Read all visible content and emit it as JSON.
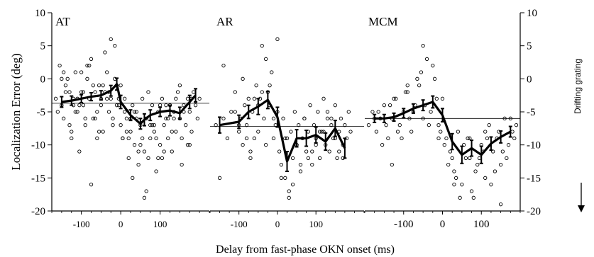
{
  "figure": {
    "ylabel": "Localization Error (deg)",
    "xlabel": "Delay from fast-phase OKN onset (ms)",
    "side_label": "Drifting grating",
    "side_arrow": "down-arrow",
    "colors": {
      "ink": "#000000",
      "background": "#ffffff"
    }
  },
  "chart_data": [
    {
      "type": "scatter",
      "panel": "AT",
      "xlim": [
        -175,
        225
      ],
      "ylim": [
        -20,
        10
      ],
      "x_ticks": [
        -100,
        0,
        100
      ],
      "x_tick_labels": [
        "-100",
        "0",
        "100"
      ],
      "y_ticks": [
        -20,
        -15,
        -10,
        -5,
        0,
        5,
        10
      ],
      "y_tick_labels": [
        "-20",
        "-15",
        "-10",
        "-5",
        "0",
        "5",
        "10"
      ],
      "y_axis_side": "left",
      "mean_line": -3.7,
      "series": [
        {
          "x": [
            -150,
            -125,
            -100,
            -75,
            -50,
            -25,
            -10,
            0,
            25,
            50,
            60,
            75,
            100,
            125,
            150,
            175,
            190
          ],
          "y": [
            -3.5,
            -3.3,
            -3.0,
            -2.7,
            -2.5,
            -1.8,
            -0.8,
            -3.5,
            -5.5,
            -6.8,
            -6.2,
            -5.5,
            -5.0,
            -4.8,
            -5.2,
            -3.5,
            -2.5
          ],
          "err": [
            0.8,
            0.7,
            0.6,
            0.6,
            0.7,
            0.8,
            0.9,
            1.0,
            0.8,
            0.8,
            0.9,
            0.8,
            0.7,
            0.8,
            0.9,
            1.0,
            1.0
          ]
        }
      ],
      "raw_points": {
        "x": [
          -165,
          -160,
          -155,
          -150,
          -145,
          -140,
          -135,
          -130,
          -125,
          -120,
          -115,
          -110,
          -105,
          -100,
          -95,
          -90,
          -85,
          -80,
          -75,
          -70,
          -65,
          -60,
          -55,
          -50,
          -45,
          -40,
          -35,
          -30,
          -25,
          -20,
          -15,
          -10,
          -5,
          0,
          5,
          10,
          15,
          20,
          25,
          30,
          35,
          40,
          45,
          50,
          55,
          60,
          65,
          70,
          75,
          80,
          85,
          90,
          95,
          100,
          105,
          110,
          115,
          120,
          125,
          130,
          135,
          140,
          145,
          150,
          155,
          160,
          165,
          170,
          175,
          180,
          185,
          190,
          195,
          200,
          -150,
          -140,
          -130,
          -120,
          -110,
          -100,
          -90,
          -80,
          -70,
          -60,
          -50,
          -40,
          -30,
          -20,
          -10,
          0,
          10,
          20,
          30,
          40,
          50,
          60,
          70,
          80,
          90,
          100,
          110,
          120,
          130,
          140,
          150,
          160,
          170,
          180,
          -145,
          -125,
          -105,
          -85,
          -65,
          -45,
          -25,
          -5,
          15,
          35,
          55,
          75,
          95,
          115,
          135,
          155,
          175,
          -115,
          -95,
          -75,
          -55,
          -35,
          -15,
          5,
          25,
          45,
          65,
          85,
          105,
          125
        ],
        "y": [
          -3,
          -5,
          2,
          -4,
          -6,
          -1,
          0,
          -2,
          -8,
          -3,
          1,
          -5,
          -11,
          -2,
          -4,
          -7,
          0,
          -3,
          3,
          -6,
          -2,
          -9,
          -1,
          -4,
          -8,
          -2,
          1,
          -5,
          -3,
          -6,
          5,
          -1,
          -4,
          -7,
          -9,
          -3,
          -6,
          -12,
          -8,
          -4,
          -10,
          -5,
          -13,
          -7,
          -3,
          -11,
          -6,
          -2,
          -9,
          -4,
          -8,
          -14,
          -5,
          -10,
          -3,
          -7,
          -6,
          -9,
          -4,
          -11,
          -5,
          -8,
          -2,
          -6,
          -9,
          -4,
          -7,
          -3,
          -5,
          -8,
          -2,
          -4,
          -6,
          -3,
          0,
          -2,
          -7,
          -4,
          -3,
          1,
          -6,
          2,
          -1,
          -5,
          -3,
          4,
          -2,
          -7,
          -4,
          -1,
          -5,
          -9,
          -15,
          -6,
          -10,
          -18,
          -12,
          -7,
          -9,
          -4,
          -11,
          -6,
          -8,
          -3,
          -1,
          -5,
          -10,
          -3,
          1,
          -9,
          -4,
          2,
          -6,
          -1,
          6,
          -3,
          -8,
          -5,
          -9,
          -7,
          -12,
          -4,
          -6,
          -13,
          -10,
          -5,
          -2,
          -16,
          -8,
          -3,
          0,
          -9,
          -6,
          -11,
          -17,
          -7,
          -12,
          -4
        ]
      }
    },
    {
      "type": "scatter",
      "panel": "AR",
      "xlim": [
        -175,
        225
      ],
      "ylim": [
        -20,
        10
      ],
      "x_ticks": [
        -100,
        0,
        100
      ],
      "x_tick_labels": [
        "-100",
        "0",
        "100"
      ],
      "mean_line": -7.2,
      "series": [
        {
          "x": [
            -150,
            -100,
            -75,
            -50,
            -25,
            0,
            25,
            50,
            75,
            100,
            125,
            150,
            175
          ],
          "y": [
            -7.0,
            -6.5,
            -5.0,
            -4.2,
            -3.2,
            -5.8,
            -12.5,
            -9.0,
            -9.0,
            -8.5,
            -9.5,
            -7.5,
            -10.5
          ],
          "err": [
            1.2,
            1.0,
            1.0,
            1.2,
            1.3,
            1.5,
            1.5,
            1.3,
            1.2,
            1.2,
            1.3,
            1.2,
            1.5
          ]
        }
      ],
      "raw_points": {
        "x": [
          -160,
          -150,
          -140,
          -130,
          -120,
          -110,
          -100,
          -95,
          -90,
          -85,
          -80,
          -75,
          -70,
          -65,
          -60,
          -55,
          -50,
          -45,
          -40,
          -35,
          -30,
          -25,
          -20,
          -15,
          -10,
          -5,
          0,
          5,
          10,
          15,
          20,
          25,
          30,
          35,
          40,
          45,
          50,
          55,
          60,
          65,
          70,
          75,
          80,
          85,
          90,
          95,
          100,
          105,
          110,
          115,
          120,
          125,
          130,
          135,
          140,
          145,
          150,
          155,
          160,
          165,
          170,
          175,
          180,
          185,
          190,
          -140,
          -110,
          -90,
          -70,
          -50,
          -30,
          -10,
          10,
          30,
          50,
          70,
          90,
          110,
          130,
          150,
          170,
          -100,
          -60,
          -20,
          20,
          60,
          100,
          140,
          -80,
          -40,
          0,
          40,
          80,
          120,
          160
        ],
        "y": [
          -7,
          -15,
          -6,
          -9,
          -5,
          -2,
          -8,
          -6,
          -10,
          -4,
          -7,
          -3,
          -12,
          -5,
          -9,
          -1,
          -8,
          -3,
          5,
          -6,
          -10,
          -2,
          -4,
          1,
          -9,
          -7,
          -5,
          -11,
          -13,
          -6,
          -15,
          -9,
          -17,
          -8,
          -12,
          -5,
          -10,
          -7,
          -14,
          -9,
          -6,
          -11,
          -8,
          -4,
          -13,
          -7,
          -9,
          -5,
          -12,
          -8,
          -3,
          -10,
          -6,
          -11,
          -7,
          -9,
          -4,
          -12,
          -8,
          -6,
          -10,
          -7,
          -9,
          -5,
          -8,
          2,
          -5,
          0,
          -11,
          -4,
          3,
          -6,
          -15,
          -18,
          -10,
          -6,
          -11,
          -8,
          -5,
          -9,
          -12,
          -7,
          -3,
          -1,
          -9,
          -13,
          -10,
          -6,
          -9,
          -2,
          6,
          -16,
          -12,
          -8,
          -11
        ]
      }
    },
    {
      "type": "scatter",
      "panel": "MCM",
      "xlim": [
        -200,
        200
      ],
      "ylim": [
        -20,
        10
      ],
      "x_ticks": [
        -100,
        0,
        100
      ],
      "x_tick_labels": [
        "-100",
        "0",
        "100"
      ],
      "y_ticks": [
        -20,
        -15,
        -10,
        -5,
        0,
        5,
        10
      ],
      "y_tick_labels": [
        "-20",
        "-15",
        "-10",
        "-5",
        "0",
        "5",
        "10"
      ],
      "y_axis_side": "right",
      "mean_line": -6.0,
      "series": [
        {
          "x": [
            -175,
            -150,
            -125,
            -100,
            -75,
            -50,
            -25,
            0,
            25,
            50,
            75,
            100,
            125,
            150,
            175
          ],
          "y": [
            -6.0,
            -6.0,
            -5.8,
            -5.2,
            -4.5,
            -4.0,
            -3.5,
            -5.5,
            -9.5,
            -11.5,
            -10.5,
            -11.5,
            -9.8,
            -8.8,
            -8.0
          ],
          "err": [
            0.6,
            0.6,
            0.6,
            0.7,
            0.7,
            0.8,
            0.9,
            1.0,
            1.2,
            1.3,
            1.2,
            1.3,
            1.0,
            0.9,
            0.8
          ]
        }
      ],
      "raw_points": {
        "x": [
          -190,
          -180,
          -170,
          -160,
          -150,
          -140,
          -130,
          -120,
          -110,
          -100,
          -90,
          -80,
          -70,
          -60,
          -50,
          -40,
          -30,
          -20,
          -10,
          0,
          10,
          20,
          30,
          40,
          50,
          60,
          70,
          80,
          90,
          100,
          110,
          120,
          130,
          140,
          150,
          160,
          170,
          180,
          190,
          -175,
          -155,
          -135,
          -115,
          -95,
          -75,
          -55,
          -35,
          -15,
          5,
          25,
          45,
          65,
          85,
          105,
          125,
          145,
          165,
          185,
          -165,
          -145,
          -125,
          -105,
          -85,
          -65,
          -45,
          -25,
          -5,
          15,
          35,
          55,
          75,
          95,
          115,
          135,
          155,
          175,
          -130,
          -90,
          -50,
          -10,
          30,
          70,
          110,
          150
        ],
        "y": [
          -7,
          -5,
          -8,
          -6,
          -4,
          -9,
          -6,
          -3,
          -7,
          -5,
          -2,
          -8,
          -4,
          -1,
          -6,
          3,
          -5,
          0,
          -7,
          -3,
          -9,
          -11,
          -14,
          -8,
          -16,
          -12,
          -9,
          -18,
          -13,
          -10,
          -15,
          -7,
          -11,
          -9,
          -13,
          -6,
          -10,
          -8,
          -7,
          -6,
          -10,
          -4,
          -8,
          -2,
          -5,
          1,
          -7,
          -3,
          -10,
          -12,
          -18,
          -9,
          -14,
          -11,
          -16,
          -8,
          -12,
          -9,
          -5,
          -7,
          -3,
          -9,
          -6,
          0,
          -4,
          2,
          -8,
          -13,
          -15,
          -10,
          -17,
          -12,
          -9,
          -14,
          -11,
          -6,
          -13,
          -1,
          5,
          -9,
          -16,
          -12,
          -8,
          -19
        ]
      }
    }
  ]
}
